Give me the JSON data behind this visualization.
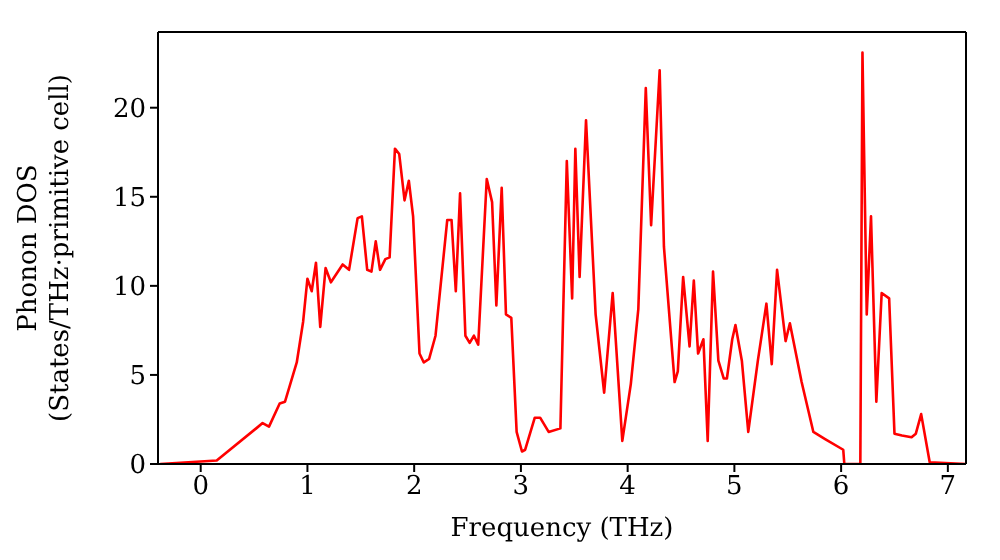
{
  "chart_data": {
    "type": "line",
    "xlabel": "Frequency (THz)",
    "ylabel": "Phonon DOS\n(States/THz·primitive cell)",
    "xlim": [
      -0.4,
      7.17
    ],
    "ylim": [
      0,
      24.25
    ],
    "xticks": [
      0,
      1,
      2,
      3,
      4,
      5,
      6,
      7
    ],
    "yticks": [
      0,
      5,
      10,
      15,
      20
    ],
    "marker": "none",
    "line_style": "solid",
    "series": [
      {
        "color": "#ff0000",
        "x": [
          -0.38,
          0.15,
          0.52,
          0.58,
          0.64,
          0.74,
          0.79,
          0.9,
          0.96,
          1.0,
          1.04,
          1.08,
          1.12,
          1.17,
          1.22,
          1.33,
          1.39,
          1.47,
          1.51,
          1.56,
          1.6,
          1.64,
          1.68,
          1.73,
          1.77,
          1.82,
          1.86,
          1.91,
          1.95,
          1.99,
          2.05,
          2.09,
          2.14,
          2.2,
          2.31,
          2.35,
          2.39,
          2.43,
          2.48,
          2.52,
          2.56,
          2.6,
          2.68,
          2.73,
          2.77,
          2.82,
          2.86,
          2.91,
          2.96,
          3.01,
          3.04,
          3.13,
          3.18,
          3.26,
          3.37,
          3.43,
          3.48,
          3.51,
          3.55,
          3.61,
          3.7,
          3.78,
          3.86,
          3.95,
          4.03,
          4.1,
          4.17,
          4.22,
          4.3,
          4.34,
          4.44,
          4.47,
          4.52,
          4.58,
          4.62,
          4.66,
          4.71,
          4.75,
          4.8,
          4.85,
          4.9,
          4.93,
          4.98,
          5.01,
          5.07,
          5.13,
          5.22,
          5.3,
          5.35,
          5.4,
          5.48,
          5.52,
          5.63,
          5.74,
          5.85,
          6.02,
          6.03,
          6.18,
          6.2,
          6.24,
          6.28,
          6.33,
          6.38,
          6.45,
          6.5,
          6.57,
          6.66,
          6.7,
          6.75,
          6.83,
          7.17
        ],
        "values": [
          0,
          0.2,
          2.0,
          2.3,
          2.1,
          3.4,
          3.5,
          5.7,
          8.0,
          10.4,
          9.7,
          11.3,
          7.7,
          11.0,
          10.2,
          11.2,
          10.9,
          13.8,
          13.9,
          10.9,
          10.8,
          12.5,
          10.9,
          11.5,
          11.6,
          17.7,
          17.4,
          14.8,
          15.9,
          13.9,
          6.2,
          5.7,
          5.9,
          7.2,
          13.7,
          13.7,
          9.7,
          15.2,
          7.2,
          6.8,
          7.2,
          6.7,
          16.0,
          14.7,
          8.9,
          15.5,
          8.4,
          8.2,
          1.8,
          0.7,
          0.8,
          2.6,
          2.6,
          1.8,
          2.0,
          17.0,
          9.3,
          17.7,
          10.5,
          19.3,
          8.4,
          4.0,
          9.6,
          1.3,
          4.5,
          8.7,
          21.1,
          13.4,
          22.1,
          12.2,
          4.6,
          5.2,
          10.5,
          6.6,
          10.3,
          6.2,
          7.0,
          1.3,
          10.8,
          5.8,
          4.8,
          4.8,
          7.0,
          7.8,
          5.8,
          1.8,
          5.8,
          9.0,
          5.6,
          10.9,
          6.9,
          7.9,
          4.6,
          1.8,
          1.4,
          0.8,
          0,
          0,
          23.1,
          8.4,
          13.9,
          3.5,
          9.6,
          9.3,
          1.7,
          1.6,
          1.5,
          1.7,
          2.8,
          0.1,
          0
        ]
      }
    ]
  }
}
